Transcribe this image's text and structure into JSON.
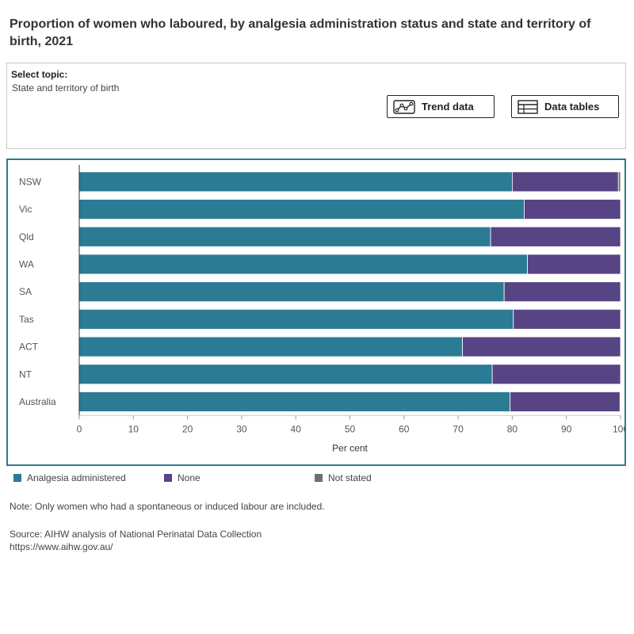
{
  "title": "Proportion of women who laboured, by analgesia administration status and state and territory of birth, 2021",
  "topic": {
    "label": "Select topic:",
    "value": "State and territory of birth"
  },
  "buttons": {
    "trend": "Trend data",
    "tables": "Data tables"
  },
  "colors": {
    "analgesia": "#2b7b94",
    "none": "#574484",
    "not_stated": "#6e6e6e",
    "frame": "#2a7a8c"
  },
  "chart_data": {
    "type": "bar",
    "orientation": "horizontal",
    "stacked": true,
    "categories": [
      "NSW",
      "Vic",
      "Qld",
      "WA",
      "SA",
      "Tas",
      "ACT",
      "NT",
      "Australia"
    ],
    "series": [
      {
        "name": "Analgesia administered",
        "values": [
          80.0,
          82.2,
          76.0,
          82.8,
          78.5,
          80.2,
          70.8,
          76.3,
          79.6
        ]
      },
      {
        "name": "None",
        "values": [
          19.6,
          17.8,
          24.0,
          17.2,
          21.5,
          19.8,
          29.2,
          23.7,
          20.3
        ]
      },
      {
        "name": "Not stated",
        "values": [
          0.4,
          0.0,
          0.0,
          0.0,
          0.0,
          0.0,
          0.0,
          0.0,
          0.1
        ]
      }
    ],
    "x_ticks": [
      "0",
      "10",
      "20",
      "30",
      "40",
      "50",
      "60",
      "70",
      "80",
      "90",
      "100"
    ],
    "xlim": [
      0,
      100
    ],
    "xlabel": "Per cent",
    "ylabel": "",
    "grid": false,
    "legend_position": "bottom"
  },
  "legend": {
    "items": [
      "Analgesia administered",
      "None",
      "Not stated"
    ]
  },
  "note": "Note: Only women who had a spontaneous or induced labour are included.",
  "source": {
    "line1": "Source: AIHW analysis of National Perinatal Data Collection",
    "line2": "https://www.aihw.gov.au/"
  }
}
